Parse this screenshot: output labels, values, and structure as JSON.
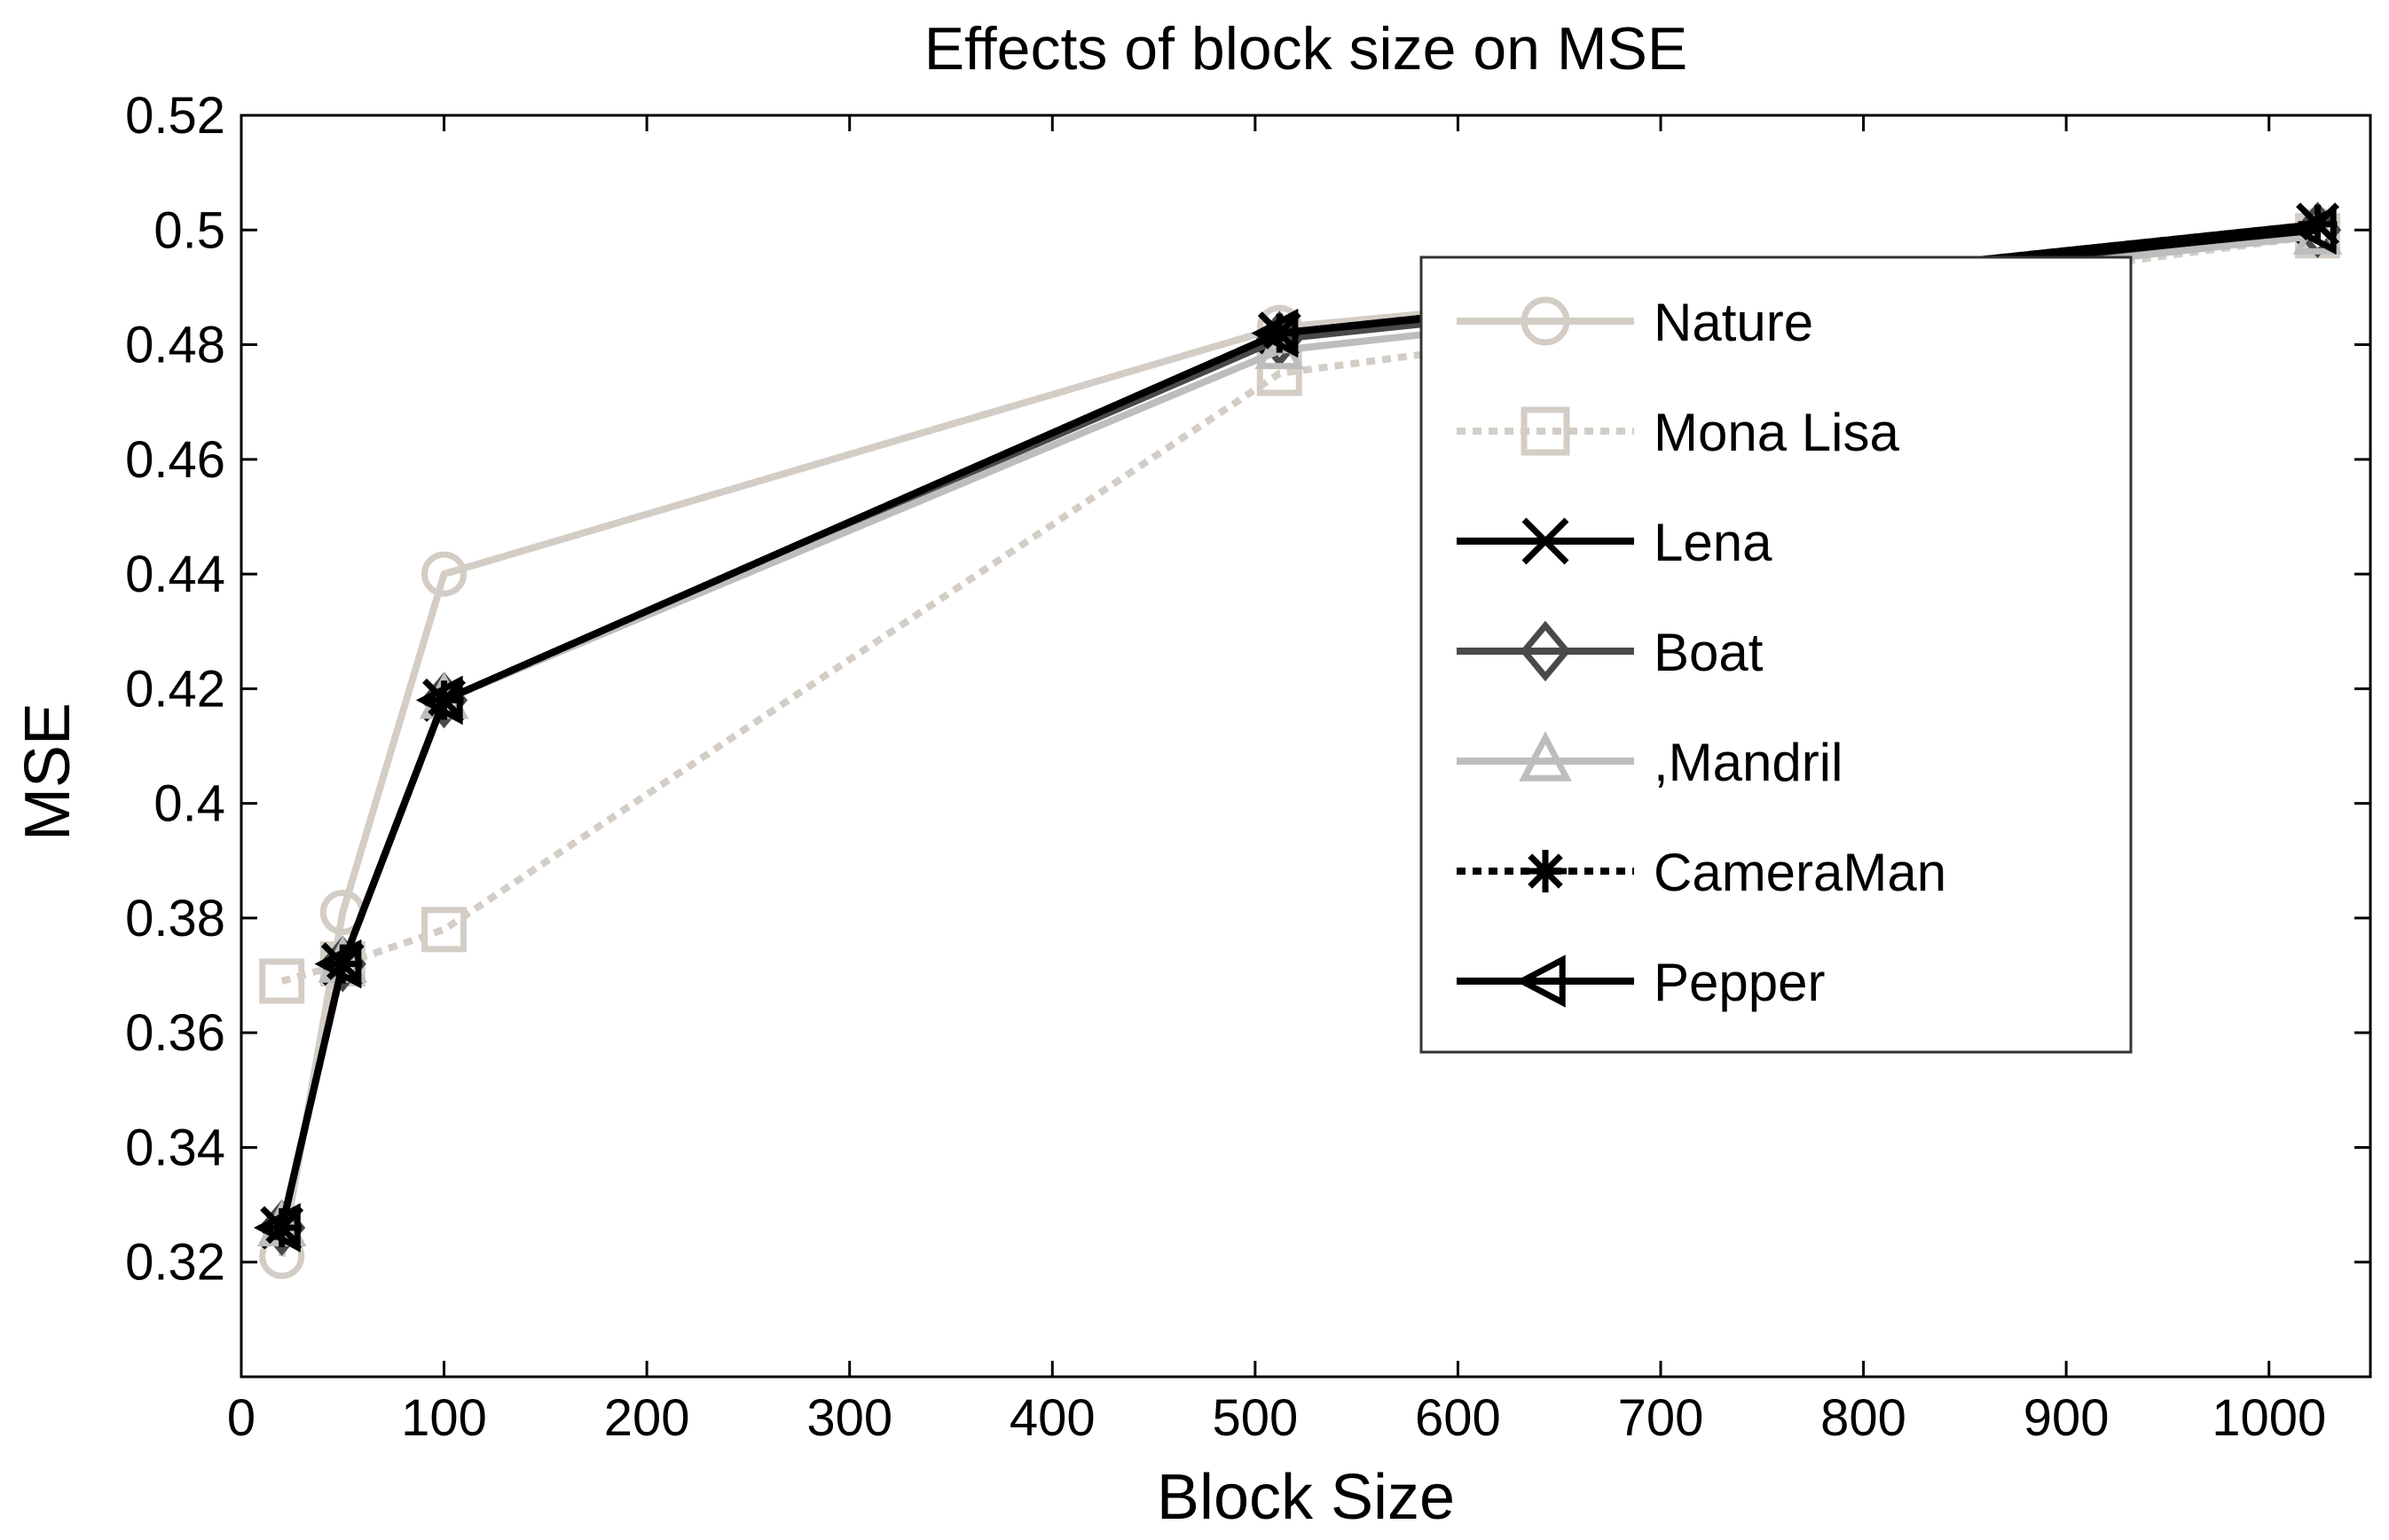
{
  "chart_data": {
    "type": "line",
    "title": "Effects of block size on MSE",
    "xlabel": "Block Size",
    "ylabel": "MSE",
    "xlim": [
      0,
      1050
    ],
    "ylim": [
      0.3,
      0.52
    ],
    "xticks": [
      0,
      100,
      200,
      300,
      400,
      500,
      600,
      700,
      800,
      900,
      1000
    ],
    "yticks": [
      0.32,
      0.34,
      0.36,
      0.38,
      0.4,
      0.42,
      0.44,
      0.46,
      0.48,
      0.5,
      0.52
    ],
    "xtick_labels": [
      "0",
      "100",
      "200",
      "300",
      "400",
      "500",
      "600",
      "700",
      "800",
      "900",
      "1000"
    ],
    "ytick_labels": [
      "0.32",
      "0.34",
      "0.36",
      "0.38",
      "0.4",
      "0.42",
      "0.44",
      "0.46",
      "0.48",
      "0.5",
      "0.52"
    ],
    "legend_position": "upper-right",
    "series": [
      {
        "name": "Nature",
        "color": "#d3cdc6",
        "dash": "solid",
        "marker": "circle",
        "x": [
          20,
          50,
          100,
          512,
          1024
        ],
        "y": [
          0.321,
          0.381,
          0.44,
          0.483,
          0.5
        ]
      },
      {
        "name": "Mona Lisa",
        "color": "#d3cdc6",
        "dash": "dotted",
        "marker": "square",
        "x": [
          20,
          50,
          100,
          512,
          1024
        ],
        "y": [
          0.369,
          0.372,
          0.378,
          0.475,
          0.499
        ]
      },
      {
        "name": "Lena",
        "color": "#000000",
        "dash": "solid",
        "marker": "x",
        "x": [
          20,
          50,
          100,
          512,
          1024
        ],
        "y": [
          0.326,
          0.372,
          0.418,
          0.482,
          0.501
        ]
      },
      {
        "name": "Boat",
        "color": "#4a4a4a",
        "dash": "solid",
        "marker": "diamond",
        "x": [
          20,
          50,
          100,
          512,
          1024
        ],
        "y": [
          0.326,
          0.372,
          0.418,
          0.481,
          0.5
        ]
      },
      {
        "name": ",Mandril",
        "color": "#bdbdbd",
        "dash": "solid",
        "marker": "triangle",
        "x": [
          20,
          50,
          100,
          512,
          1024
        ],
        "y": [
          0.326,
          0.372,
          0.418,
          0.479,
          0.499
        ]
      },
      {
        "name": "CameraMan",
        "color": "#000000",
        "dash": "dotted",
        "marker": "star",
        "x": [
          20,
          50,
          100,
          512,
          1024
        ],
        "y": [
          0.326,
          0.372,
          0.418,
          0.482,
          0.501
        ]
      },
      {
        "name": "Pepper",
        "color": "#000000",
        "dash": "solid",
        "marker": "triangle-left",
        "x": [
          20,
          50,
          100,
          512,
          1024
        ],
        "y": [
          0.326,
          0.372,
          0.418,
          0.482,
          0.5
        ]
      }
    ]
  }
}
